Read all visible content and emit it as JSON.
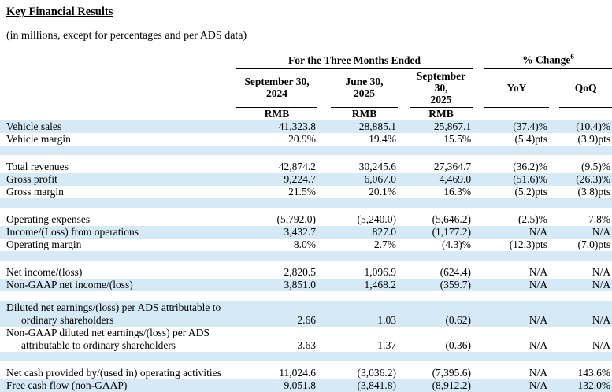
{
  "page": {
    "title": "Key Financial Results",
    "subtitle": "(in millions, except for percentages and per ADS data)"
  },
  "colors": {
    "row_highlight": "#d5e9f7",
    "text": "#000000",
    "rule": "#000000"
  },
  "table": {
    "group_headers": {
      "period": "For the Three Months Ended",
      "pct_change": "% Change",
      "pct_change_superscript": "6"
    },
    "columns": [
      {
        "line1": "September 30,",
        "line2": "2024",
        "unit": "RMB"
      },
      {
        "line1": "June 30,",
        "line2": "2025",
        "unit": "RMB"
      },
      {
        "line1": "September 30,",
        "line2": "2025",
        "unit": "RMB"
      },
      {
        "label": "YoY"
      },
      {
        "label": "QoQ"
      }
    ],
    "rows": [
      {
        "type": "data",
        "shade": true,
        "label": "Vehicle sales",
        "values": [
          "41,323.8",
          "28,885.1",
          "25,867.1",
          "(37.4)%",
          "(10.4)%"
        ]
      },
      {
        "type": "data",
        "shade": false,
        "label": "Vehicle margin",
        "values": [
          "20.9%",
          "19.4%",
          "15.5%",
          "(5.4)pts",
          "(3.9)pts"
        ]
      },
      {
        "type": "blank",
        "shade": true,
        "h": 12
      },
      {
        "type": "blank",
        "shade": false,
        "h": 7
      },
      {
        "type": "data",
        "shade": false,
        "label": "Total revenues",
        "values": [
          "42,874.2",
          "30,245.6",
          "27,364.7",
          "(36.2)%",
          "(9.5)%"
        ]
      },
      {
        "type": "data",
        "shade": true,
        "label": "Gross profit",
        "values": [
          "9,224.7",
          "6,067.0",
          "4,469.0",
          "(51.6)%",
          "(26.3)%"
        ]
      },
      {
        "type": "data",
        "shade": false,
        "label": "Gross margin",
        "values": [
          "21.5%",
          "20.1%",
          "16.3%",
          "(5.2)pts",
          "(3.8)pts"
        ]
      },
      {
        "type": "blank",
        "shade": true,
        "h": 12
      },
      {
        "type": "blank",
        "shade": false,
        "h": 7
      },
      {
        "type": "data",
        "shade": false,
        "label": "Operating expenses",
        "values": [
          "(5,792.0)",
          "(5,240.0)",
          "(5,646.2)",
          "(2.5)%",
          "7.8%"
        ]
      },
      {
        "type": "data",
        "shade": true,
        "label": "Income/(Loss) from operations",
        "values": [
          "3,432.7",
          "827.0",
          "(1,177.2)",
          "N/A",
          "N/A"
        ]
      },
      {
        "type": "data",
        "shade": false,
        "label": "Operating margin",
        "values": [
          "8.0%",
          "2.7%",
          "(4.3)%",
          "(12.3)pts",
          "(7.0)pts"
        ]
      },
      {
        "type": "blank",
        "shade": true,
        "h": 12
      },
      {
        "type": "blank",
        "shade": false,
        "h": 7
      },
      {
        "type": "data",
        "shade": false,
        "label": "Net income/(loss)",
        "values": [
          "2,820.5",
          "1,096.9",
          "(624.4)",
          "N/A",
          "N/A"
        ]
      },
      {
        "type": "data",
        "shade": true,
        "label": "Non-GAAP net income/(loss)",
        "values": [
          "3,851.0",
          "1,468.2",
          "(359.7)",
          "N/A",
          "N/A"
        ]
      },
      {
        "type": "blank",
        "shade": false,
        "h": 13
      },
      {
        "type": "data2",
        "shade": true,
        "label": "Diluted net earnings/(loss) per ADS attributable to",
        "label2": "ordinary shareholders",
        "values": [
          "2.66",
          "1.03",
          "(0.62)",
          "N/A",
          "N/A"
        ]
      },
      {
        "type": "data2",
        "shade": false,
        "label": "Non-GAAP diluted net earnings/(loss) per ADS",
        "label2": "attributable to ordinary shareholders",
        "values": [
          "3.63",
          "1.37",
          "(0.36)",
          "N/A",
          "N/A"
        ]
      },
      {
        "type": "blank",
        "shade": true,
        "h": 12
      },
      {
        "type": "blank",
        "shade": false,
        "h": 7
      },
      {
        "type": "data",
        "shade": false,
        "label": "Net cash provided by/(used in) operating activities",
        "values": [
          "11,024.6",
          "(3,036.2)",
          "(7,395.6)",
          "N/A",
          "143.6%"
        ]
      },
      {
        "type": "data",
        "shade": true,
        "label": "Free cash flow (non-GAAP)",
        "values": [
          "9,051.8",
          "(3,841.8)",
          "(8,912.2)",
          "N/A",
          "132.0%"
        ]
      }
    ]
  }
}
